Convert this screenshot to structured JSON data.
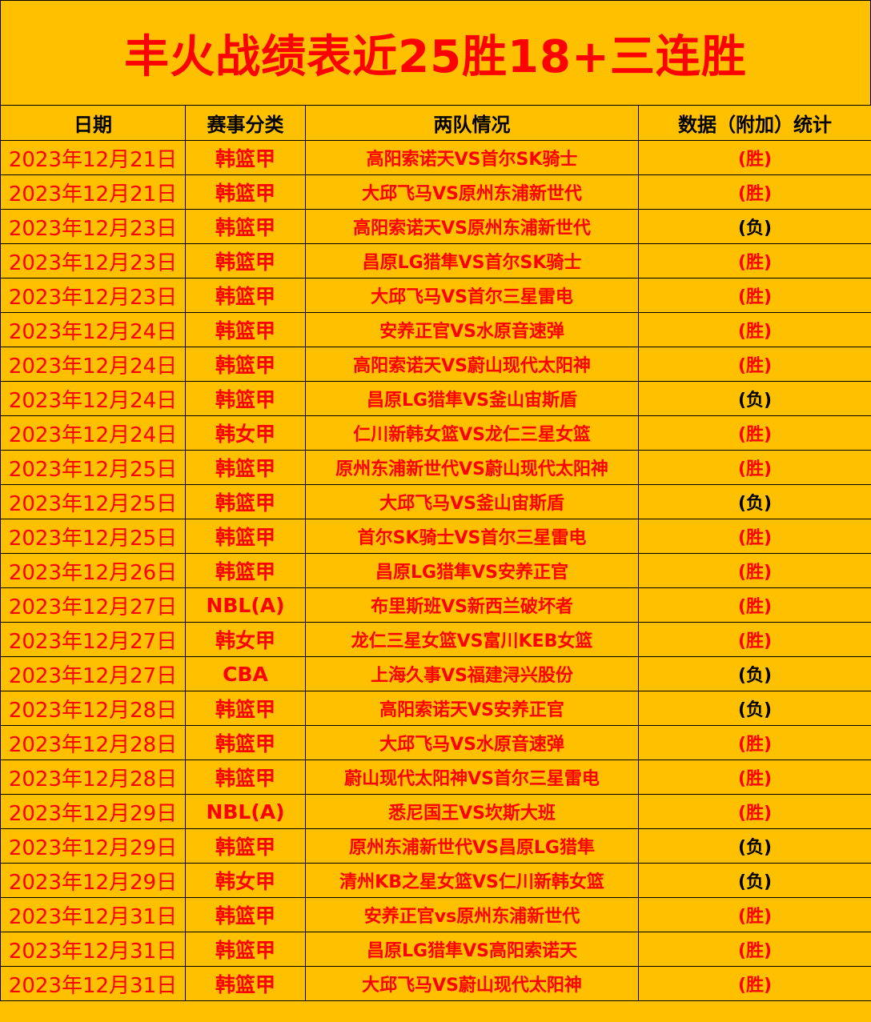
{
  "title": "丰火战绩表近25胜18+三连胜",
  "colors": {
    "background": "#FFC000",
    "accent": "#FF0000",
    "loss": "#000000"
  },
  "headers": [
    "日期",
    "赛事分类",
    "两队情况",
    "数据（附加）统计"
  ],
  "rows": [
    {
      "date": "2023年12月21日",
      "category": "韩篮甲",
      "teams": "高阳索诺天VS首尔SK骑士",
      "result": "(胜)"
    },
    {
      "date": "2023年12月21日",
      "category": "韩篮甲",
      "teams": "大邱飞马VS原州东浦新世代",
      "result": "(胜)"
    },
    {
      "date": "2023年12月23日",
      "category": "韩篮甲",
      "teams": "高阳索诺天VS原州东浦新世代",
      "result": "(负)"
    },
    {
      "date": "2023年12月23日",
      "category": "韩篮甲",
      "teams": "昌原LG猎隼VS首尔SK骑士",
      "result": "(胜)"
    },
    {
      "date": "2023年12月23日",
      "category": "韩篮甲",
      "teams": "大邱飞马VS首尔三星雷电",
      "result": "(胜)"
    },
    {
      "date": "2023年12月24日",
      "category": "韩篮甲",
      "teams": "安养正官VS水原音速弹",
      "result": "(胜)"
    },
    {
      "date": "2023年12月24日",
      "category": "韩篮甲",
      "teams": "高阳索诺天VS蔚山现代太阳神",
      "result": "(胜)"
    },
    {
      "date": "2023年12月24日",
      "category": "韩篮甲",
      "teams": "昌原LG猎隼VS釜山宙斯盾",
      "result": "(负)"
    },
    {
      "date": "2023年12月24日",
      "category": "韩女甲",
      "teams": "仁川新韩女篮VS龙仁三星女篮",
      "result": "(胜)"
    },
    {
      "date": "2023年12月25日",
      "category": "韩篮甲",
      "teams": "原州东浦新世代VS蔚山现代太阳神",
      "result": "(胜)"
    },
    {
      "date": "2023年12月25日",
      "category": "韩篮甲",
      "teams": "大邱飞马VS釜山宙斯盾",
      "result": "(负)"
    },
    {
      "date": "2023年12月25日",
      "category": "韩篮甲",
      "teams": "首尔SK骑士VS首尔三星雷电",
      "result": "(胜)"
    },
    {
      "date": "2023年12月26日",
      "category": "韩篮甲",
      "teams": "昌原LG猎隼VS安养正官",
      "result": "(胜)"
    },
    {
      "date": "2023年12月27日",
      "category": "NBL(A)",
      "teams": "布里斯班VS新西兰破坏者",
      "result": "(胜)"
    },
    {
      "date": "2023年12月27日",
      "category": "韩女甲",
      "teams": "龙仁三星女篮VS富川KEB女篮",
      "result": "(胜)"
    },
    {
      "date": "2023年12月27日",
      "category": "CBA",
      "teams": "上海久事VS福建浔兴股份",
      "result": "(负)"
    },
    {
      "date": "2023年12月28日",
      "category": "韩篮甲",
      "teams": "高阳索诺天VS安养正官",
      "result": "(负)"
    },
    {
      "date": "2023年12月28日",
      "category": "韩篮甲",
      "teams": "大邱飞马VS水原音速弹",
      "result": "(胜)"
    },
    {
      "date": "2023年12月28日",
      "category": "韩篮甲",
      "teams": "蔚山现代太阳神VS首尔三星雷电",
      "result": "(胜)"
    },
    {
      "date": "2023年12月29日",
      "category": "NBL(A)",
      "teams": "悉尼国王VS坎斯大班",
      "result": "(胜)"
    },
    {
      "date": "2023年12月29日",
      "category": "韩篮甲",
      "teams": "原州东浦新世代VS昌原LG猎隼",
      "result": "(负)"
    },
    {
      "date": "2023年12月29日",
      "category": "韩女甲",
      "teams": "清州KB之星女篮VS仁川新韩女篮",
      "result": "(负)"
    },
    {
      "date": "2023年12月31日",
      "category": "韩篮甲",
      "teams": "安养正官vs原州东浦新世代",
      "result": "(胜)"
    },
    {
      "date": "2023年12月31日",
      "category": "韩篮甲",
      "teams": "昌原LG猎隼VS高阳索诺天",
      "result": "(胜)"
    },
    {
      "date": "2023年12月31日",
      "category": "韩篮甲",
      "teams": "大邱飞马VS蔚山现代太阳神",
      "result": "(胜)"
    }
  ]
}
